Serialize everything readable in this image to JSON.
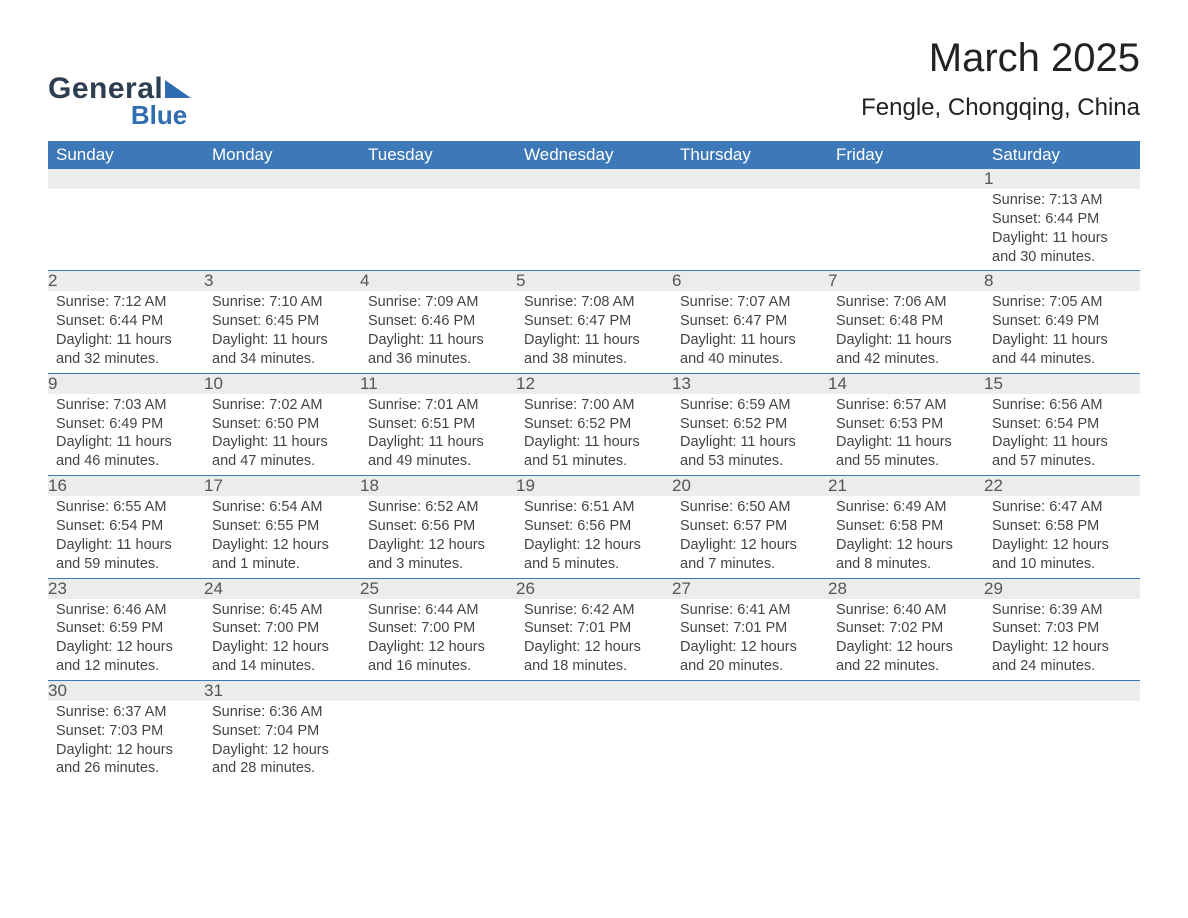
{
  "brand": {
    "name_top": "General",
    "name_bottom": "Blue",
    "accent": "#2f6db0"
  },
  "title": "March 2025",
  "location": "Fengle, Chongqing, China",
  "colors": {
    "header_bg": "#3d78b8",
    "header_text": "#ffffff",
    "daynum_bg": "#ececec",
    "border": "#3d78b8",
    "text": "#333333"
  },
  "weekdays": [
    "Sunday",
    "Monday",
    "Tuesday",
    "Wednesday",
    "Thursday",
    "Friday",
    "Saturday"
  ],
  "weeks": [
    [
      null,
      null,
      null,
      null,
      null,
      null,
      {
        "n": 1,
        "sunrise": "7:13 AM",
        "sunset": "6:44 PM",
        "daylight": "11 hours and 30 minutes."
      }
    ],
    [
      {
        "n": 2,
        "sunrise": "7:12 AM",
        "sunset": "6:44 PM",
        "daylight": "11 hours and 32 minutes."
      },
      {
        "n": 3,
        "sunrise": "7:10 AM",
        "sunset": "6:45 PM",
        "daylight": "11 hours and 34 minutes."
      },
      {
        "n": 4,
        "sunrise": "7:09 AM",
        "sunset": "6:46 PM",
        "daylight": "11 hours and 36 minutes."
      },
      {
        "n": 5,
        "sunrise": "7:08 AM",
        "sunset": "6:47 PM",
        "daylight": "11 hours and 38 minutes."
      },
      {
        "n": 6,
        "sunrise": "7:07 AM",
        "sunset": "6:47 PM",
        "daylight": "11 hours and 40 minutes."
      },
      {
        "n": 7,
        "sunrise": "7:06 AM",
        "sunset": "6:48 PM",
        "daylight": "11 hours and 42 minutes."
      },
      {
        "n": 8,
        "sunrise": "7:05 AM",
        "sunset": "6:49 PM",
        "daylight": "11 hours and 44 minutes."
      }
    ],
    [
      {
        "n": 9,
        "sunrise": "7:03 AM",
        "sunset": "6:49 PM",
        "daylight": "11 hours and 46 minutes."
      },
      {
        "n": 10,
        "sunrise": "7:02 AM",
        "sunset": "6:50 PM",
        "daylight": "11 hours and 47 minutes."
      },
      {
        "n": 11,
        "sunrise": "7:01 AM",
        "sunset": "6:51 PM",
        "daylight": "11 hours and 49 minutes."
      },
      {
        "n": 12,
        "sunrise": "7:00 AM",
        "sunset": "6:52 PM",
        "daylight": "11 hours and 51 minutes."
      },
      {
        "n": 13,
        "sunrise": "6:59 AM",
        "sunset": "6:52 PM",
        "daylight": "11 hours and 53 minutes."
      },
      {
        "n": 14,
        "sunrise": "6:57 AM",
        "sunset": "6:53 PM",
        "daylight": "11 hours and 55 minutes."
      },
      {
        "n": 15,
        "sunrise": "6:56 AM",
        "sunset": "6:54 PM",
        "daylight": "11 hours and 57 minutes."
      }
    ],
    [
      {
        "n": 16,
        "sunrise": "6:55 AM",
        "sunset": "6:54 PM",
        "daylight": "11 hours and 59 minutes."
      },
      {
        "n": 17,
        "sunrise": "6:54 AM",
        "sunset": "6:55 PM",
        "daylight": "12 hours and 1 minute."
      },
      {
        "n": 18,
        "sunrise": "6:52 AM",
        "sunset": "6:56 PM",
        "daylight": "12 hours and 3 minutes."
      },
      {
        "n": 19,
        "sunrise": "6:51 AM",
        "sunset": "6:56 PM",
        "daylight": "12 hours and 5 minutes."
      },
      {
        "n": 20,
        "sunrise": "6:50 AM",
        "sunset": "6:57 PM",
        "daylight": "12 hours and 7 minutes."
      },
      {
        "n": 21,
        "sunrise": "6:49 AM",
        "sunset": "6:58 PM",
        "daylight": "12 hours and 8 minutes."
      },
      {
        "n": 22,
        "sunrise": "6:47 AM",
        "sunset": "6:58 PM",
        "daylight": "12 hours and 10 minutes."
      }
    ],
    [
      {
        "n": 23,
        "sunrise": "6:46 AM",
        "sunset": "6:59 PM",
        "daylight": "12 hours and 12 minutes."
      },
      {
        "n": 24,
        "sunrise": "6:45 AM",
        "sunset": "7:00 PM",
        "daylight": "12 hours and 14 minutes."
      },
      {
        "n": 25,
        "sunrise": "6:44 AM",
        "sunset": "7:00 PM",
        "daylight": "12 hours and 16 minutes."
      },
      {
        "n": 26,
        "sunrise": "6:42 AM",
        "sunset": "7:01 PM",
        "daylight": "12 hours and 18 minutes."
      },
      {
        "n": 27,
        "sunrise": "6:41 AM",
        "sunset": "7:01 PM",
        "daylight": "12 hours and 20 minutes."
      },
      {
        "n": 28,
        "sunrise": "6:40 AM",
        "sunset": "7:02 PM",
        "daylight": "12 hours and 22 minutes."
      },
      {
        "n": 29,
        "sunrise": "6:39 AM",
        "sunset": "7:03 PM",
        "daylight": "12 hours and 24 minutes."
      }
    ],
    [
      {
        "n": 30,
        "sunrise": "6:37 AM",
        "sunset": "7:03 PM",
        "daylight": "12 hours and 26 minutes."
      },
      {
        "n": 31,
        "sunrise": "6:36 AM",
        "sunset": "7:04 PM",
        "daylight": "12 hours and 28 minutes."
      },
      null,
      null,
      null,
      null,
      null
    ]
  ],
  "labels": {
    "sunrise": "Sunrise: ",
    "sunset": "Sunset: ",
    "daylight": "Daylight: "
  }
}
